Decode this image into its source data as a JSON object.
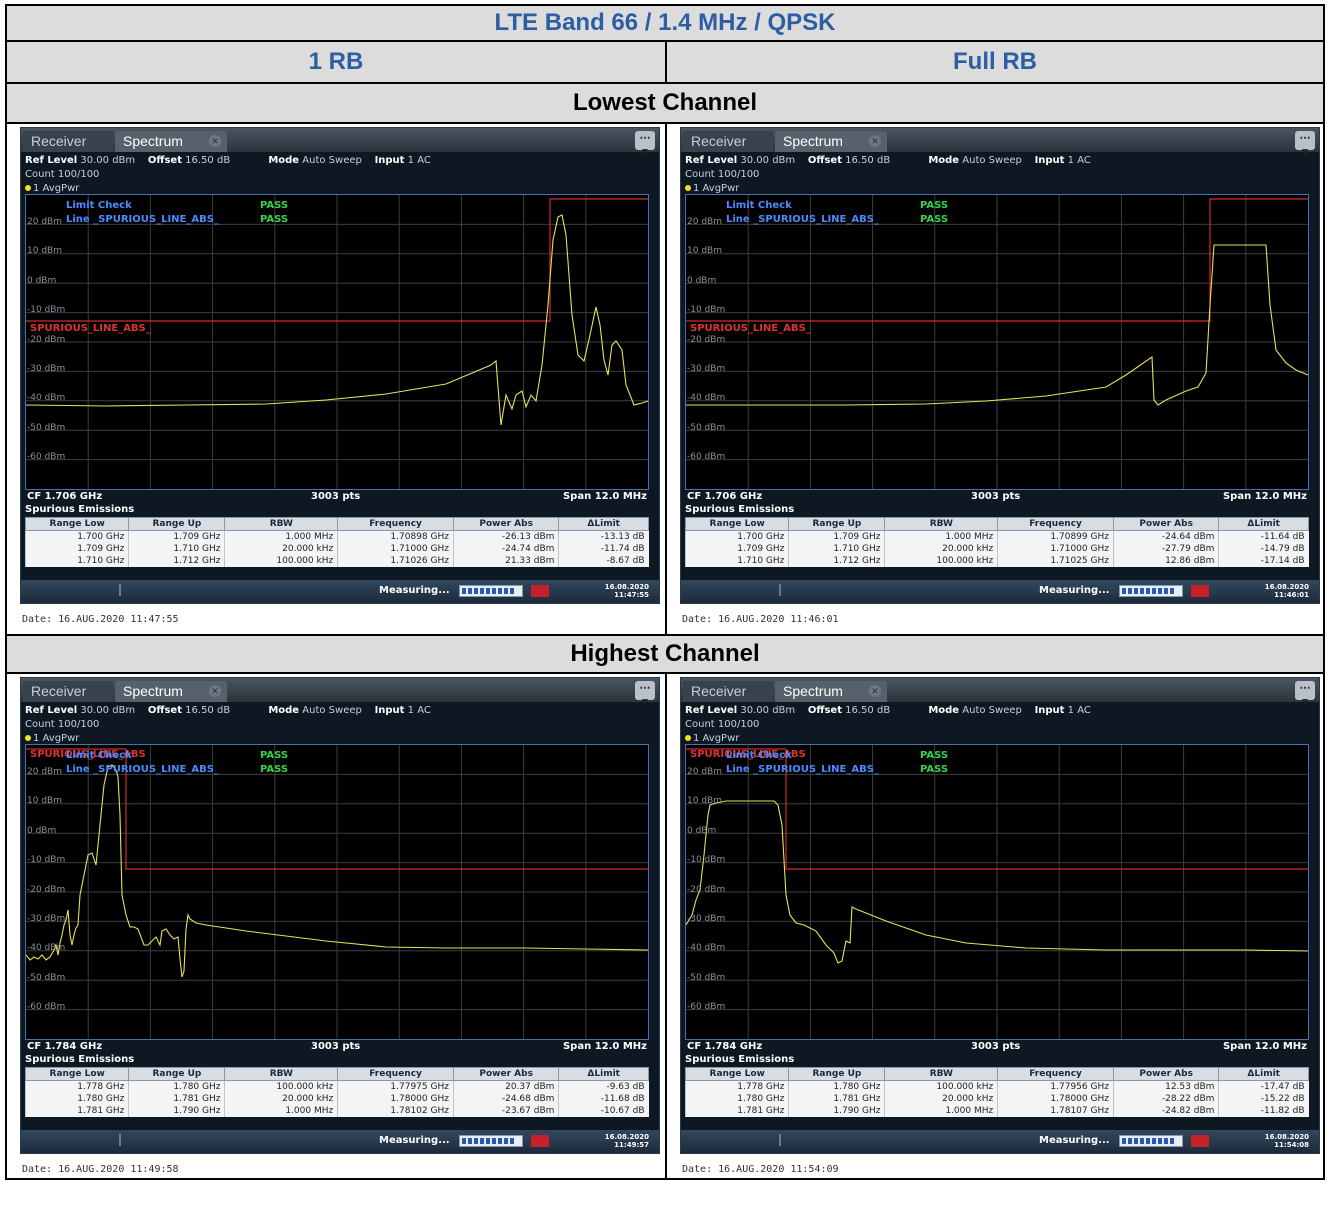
{
  "title": "LTE Band 66 / 1.4 MHz / QPSK",
  "columns": [
    "1 RB",
    "Full RB"
  ],
  "rows": [
    "Lowest Channel",
    "Highest Channel"
  ],
  "ui": {
    "tab_receiver": "Receiver",
    "tab_spectrum": "Spectrum",
    "ref_level_label": "Ref Level",
    "ref_level_value": "30.00 dBm",
    "offset_label": "Offset",
    "offset_value": "16.50 dB",
    "mode_label": "Mode",
    "mode_value": "Auto Sweep",
    "input_label": "Input",
    "input_value": "1 AC",
    "count": "Count 100/100",
    "trace": "1 AvgPwr",
    "limit_check": "Limit Check",
    "limit_line": "Line _SPURIOUS_LINE_ABS_",
    "pass": "PASS",
    "spurious_label": "SPURIOUS_LINE_ABS_",
    "spurious_label_short": "SPURIOUS_LINE_ABS",
    "pts": "3003 pts",
    "span": "Span 12.0 MHz",
    "spurious_title": "Spurious Emissions",
    "measuring": "Measuring...",
    "table_headers": [
      "Range Low",
      "Range Up",
      "RBW",
      "Frequency",
      "Power Abs",
      "ΔLimit"
    ]
  },
  "ylabels": [
    "20 dBm",
    "10 dBm",
    "0 dBm",
    "-10 dBm",
    "-20 dBm",
    "-30 dBm",
    "-40 dBm",
    "-50 dBm",
    "-60 dBm"
  ],
  "panels": [
    {
      "cf": "CF 1.706 GHz",
      "date": "Date: 16.AUG.2020  11:47:55",
      "clock_date": "16.08.2020",
      "clock_time": "11:47:55",
      "table": [
        [
          "1.700 GHz",
          "1.709 GHz",
          "1.000 MHz",
          "1.70898 GHz",
          "-26.13 dBm",
          "-13.13 dB"
        ],
        [
          "1.709 GHz",
          "1.710 GHz",
          "20.000 kHz",
          "1.71000 GHz",
          "-24.74 dBm",
          "-11.74 dB"
        ],
        [
          "1.710 GHz",
          "1.712 GHz",
          "100.000 kHz",
          "1.71026 GHz",
          "21.33 dBm",
          "-8.67 dB"
        ]
      ]
    },
    {
      "cf": "CF 1.706 GHz",
      "date": "Date: 16.AUG.2020  11:46:01",
      "clock_date": "16.08.2020",
      "clock_time": "11:46:01",
      "table": [
        [
          "1.700 GHz",
          "1.709 GHz",
          "1.000 MHz",
          "1.70899 GHz",
          "-24.64 dBm",
          "-11.64 dB"
        ],
        [
          "1.709 GHz",
          "1.710 GHz",
          "20.000 kHz",
          "1.71000 GHz",
          "-27.79 dBm",
          "-14.79 dB"
        ],
        [
          "1.710 GHz",
          "1.712 GHz",
          "100.000 kHz",
          "1.71025 GHz",
          "12.86 dBm",
          "-17.14 dB"
        ]
      ]
    },
    {
      "cf": "CF 1.784 GHz",
      "date": "Date: 16.AUG.2020  11:49:58",
      "clock_date": "16.08.2020",
      "clock_time": "11:49:57",
      "table": [
        [
          "1.778 GHz",
          "1.780 GHz",
          "100.000 kHz",
          "1.77975 GHz",
          "20.37 dBm",
          "-9.63 dB"
        ],
        [
          "1.780 GHz",
          "1.781 GHz",
          "20.000 kHz",
          "1.78000 GHz",
          "-24.68 dBm",
          "-11.68 dB"
        ],
        [
          "1.781 GHz",
          "1.790 GHz",
          "1.000 MHz",
          "1.78102 GHz",
          "-23.67 dBm",
          "-10.67 dB"
        ]
      ]
    },
    {
      "cf": "CF 1.784 GHz",
      "date": "Date: 16.AUG.2020  11:54:09",
      "clock_date": "16.08.2020",
      "clock_time": "11:54:08",
      "table": [
        [
          "1.778 GHz",
          "1.780 GHz",
          "100.000 kHz",
          "1.77956 GHz",
          "12.53 dBm",
          "-17.47 dB"
        ],
        [
          "1.780 GHz",
          "1.781 GHz",
          "20.000 kHz",
          "1.78000 GHz",
          "-28.22 dBm",
          "-15.22 dB"
        ],
        [
          "1.781 GHz",
          "1.790 GHz",
          "1.000 MHz",
          "1.78107 GHz",
          "-24.82 dBm",
          "-11.82 dB"
        ]
      ]
    }
  ],
  "colors": {
    "trace": "#e8e05a",
    "limit": "#d42a2a",
    "grid": "#3a3f46",
    "header_blue": "#2d5da2"
  }
}
